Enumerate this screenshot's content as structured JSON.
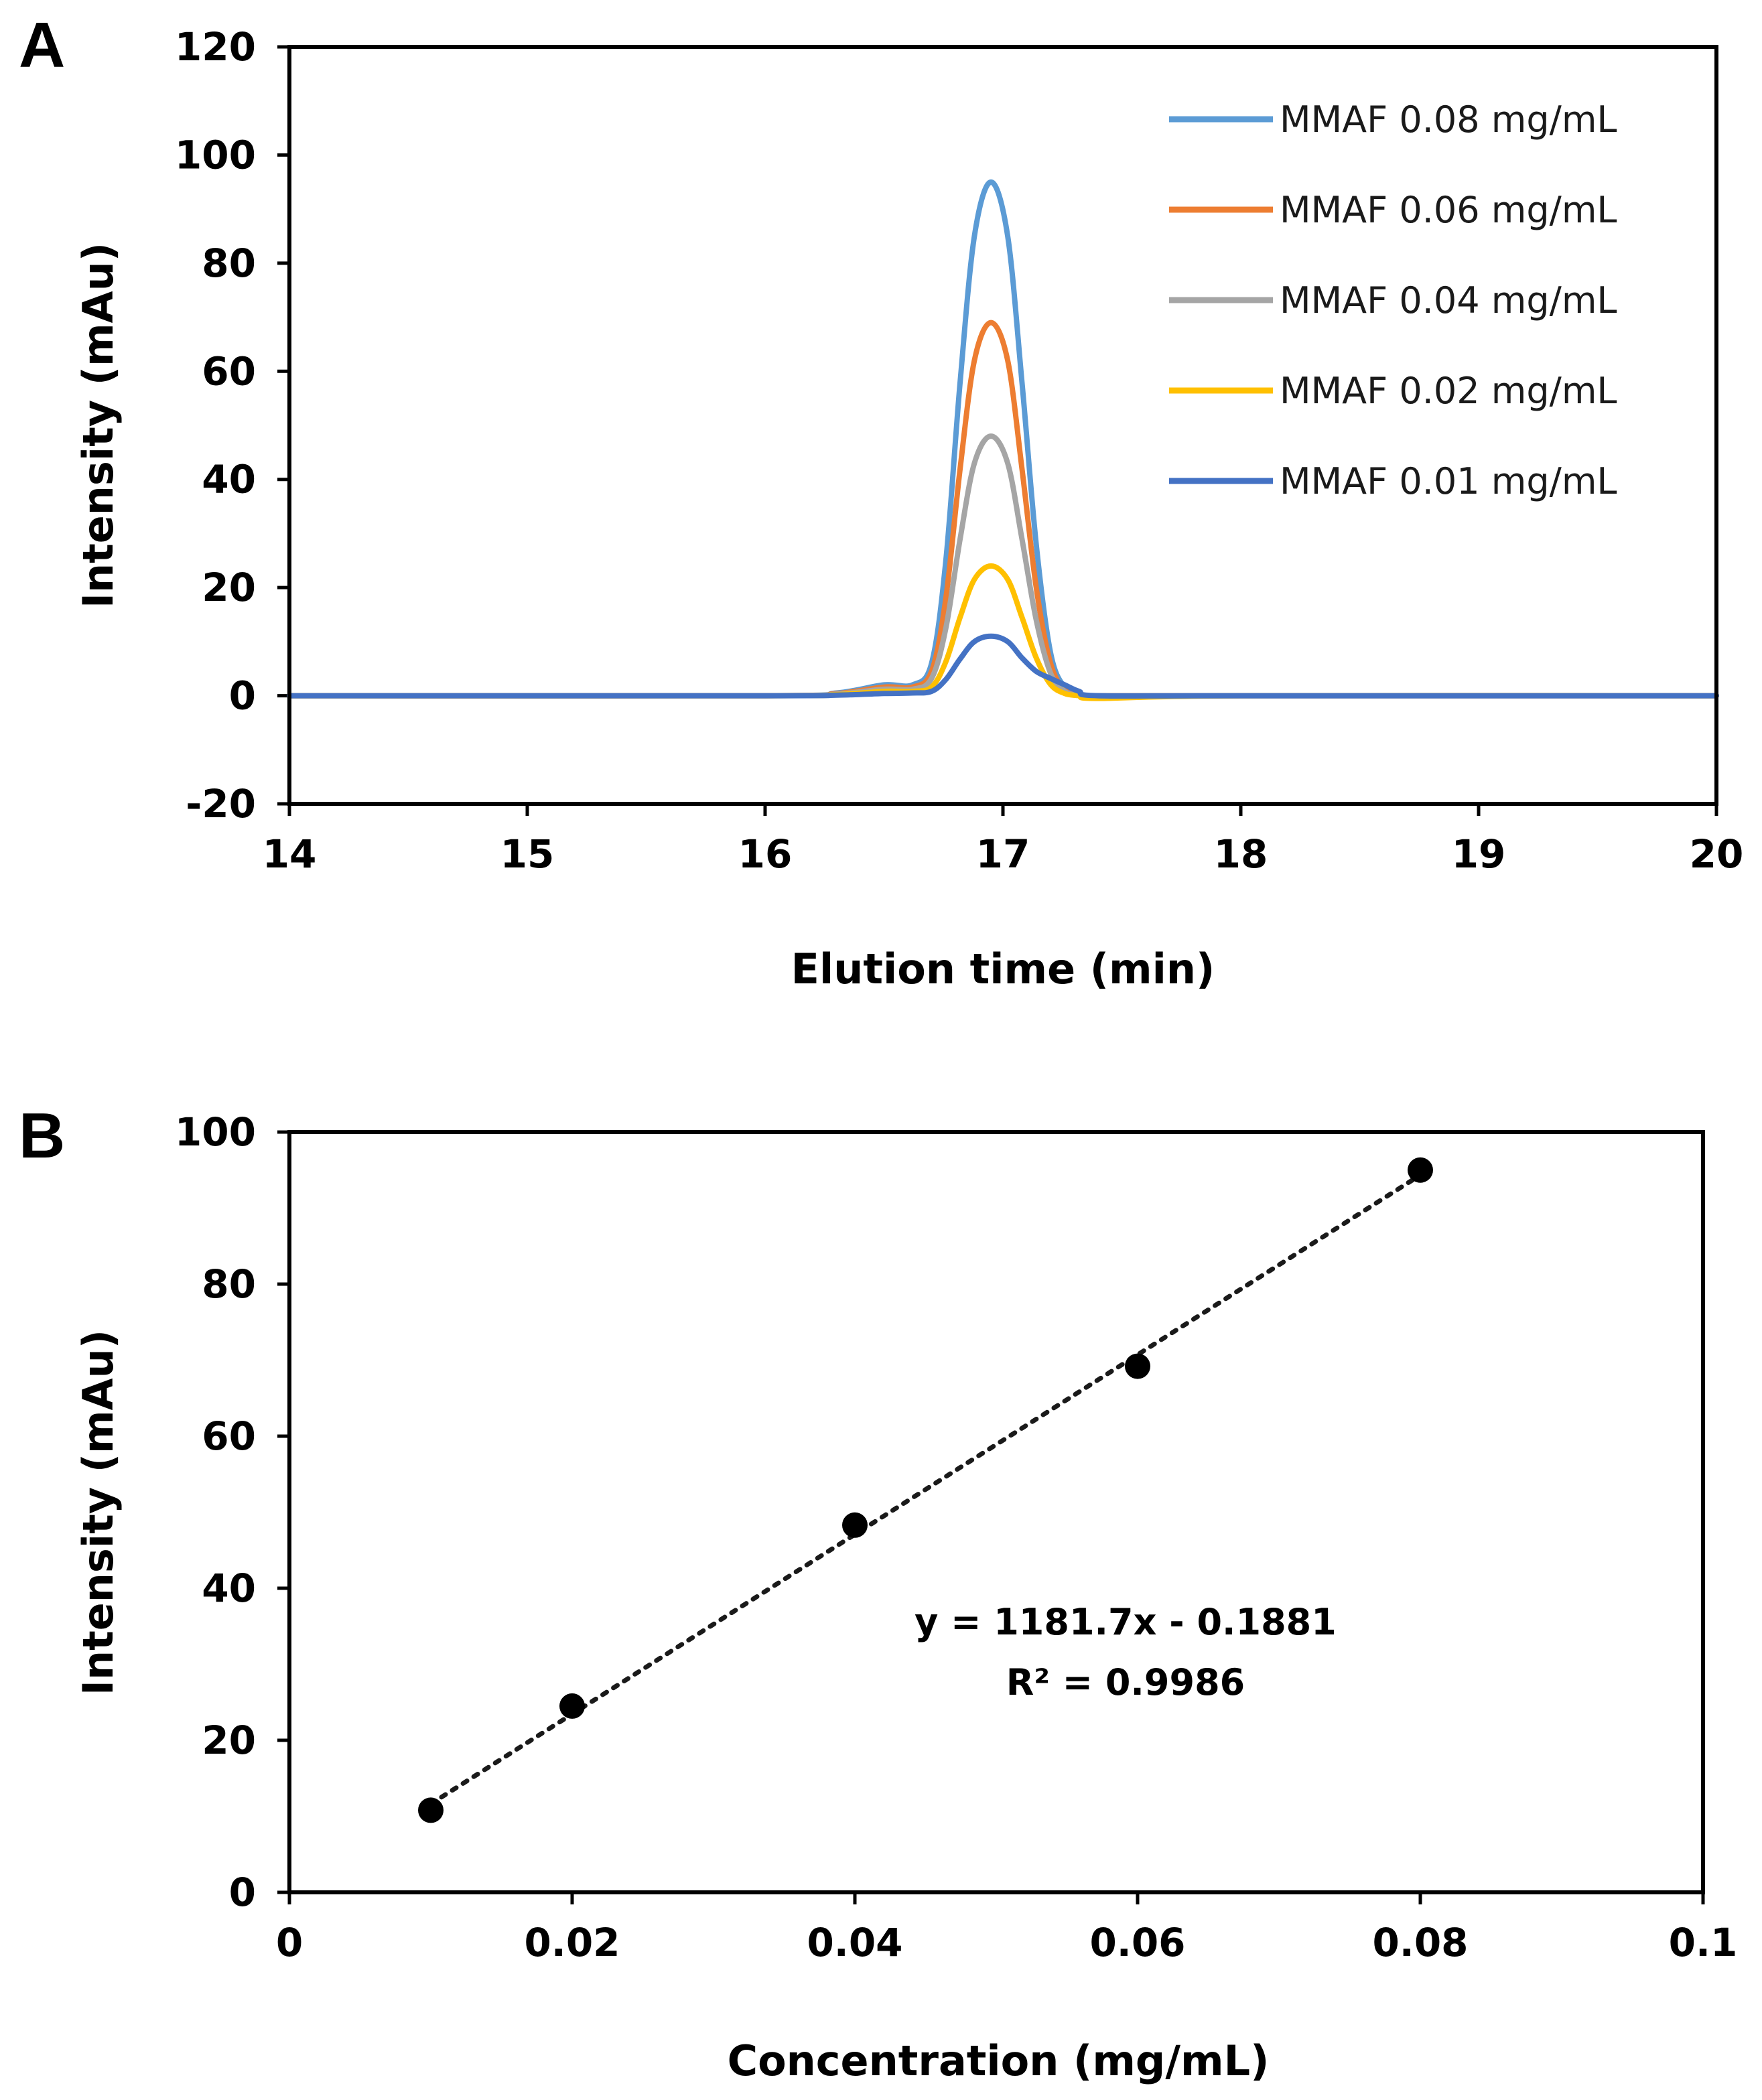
{
  "chart_data": [
    {
      "type": "line",
      "panel_label": "A",
      "title": "",
      "xlabel": "Elution time (min)",
      "ylabel": "Intensity (mAu)",
      "xlim": [
        14,
        20
      ],
      "ylim": [
        -20,
        120
      ],
      "xticks": [
        "14",
        "15",
        "16",
        "17",
        "18",
        "19",
        "20"
      ],
      "yticks": [
        "-20",
        "0",
        "20",
        "40",
        "60",
        "80",
        "100",
        "120"
      ],
      "legend_position": "top-right",
      "grid": false,
      "peak_center": 16.95,
      "series": [
        {
          "name": "MMAF 0.08 mg/mL",
          "color": "#5b9bd5",
          "peak_height": 95,
          "shoulder_height": 2.0,
          "x": [
            14,
            16.0,
            16.3,
            16.5,
            16.62,
            16.7,
            16.76,
            16.82,
            16.88,
            16.95,
            17.02,
            17.08,
            17.14,
            17.2,
            17.26,
            17.32,
            17.4,
            18,
            20
          ],
          "y": [
            0,
            0,
            0.5,
            2.0,
            2.0,
            6,
            25,
            58,
            85,
            95,
            85,
            58,
            28,
            8,
            1.5,
            0.2,
            0,
            0,
            0
          ]
        },
        {
          "name": "MMAF 0.06 mg/mL",
          "color": "#ed7d31",
          "peak_height": 69,
          "shoulder_height": 1.6,
          "x": [
            14,
            16.0,
            16.3,
            16.5,
            16.62,
            16.7,
            16.76,
            16.82,
            16.88,
            16.95,
            17.02,
            17.08,
            17.14,
            17.2,
            17.26,
            17.32,
            17.4,
            18,
            20
          ],
          "y": [
            0,
            0,
            0.4,
            1.6,
            1.6,
            4.5,
            18,
            42,
            62,
            69,
            62,
            42,
            20,
            6,
            1.1,
            0.1,
            0,
            0,
            0
          ]
        },
        {
          "name": "MMAF 0.04 mg/mL",
          "color": "#a5a5a5",
          "peak_height": 48,
          "shoulder_height": 1.2,
          "x": [
            14,
            16.0,
            16.3,
            16.5,
            16.62,
            16.7,
            16.76,
            16.82,
            16.88,
            16.95,
            17.02,
            17.08,
            17.14,
            17.2,
            17.26,
            17.32,
            17.4,
            18,
            20
          ],
          "y": [
            0,
            0,
            0.3,
            1.2,
            1.2,
            3.2,
            12.5,
            29,
            43,
            48,
            43,
            29,
            14,
            4.2,
            0.8,
            0.1,
            0,
            0,
            0
          ]
        },
        {
          "name": "MMAF 0.02 mg/mL",
          "color": "#ffc000",
          "peak_height": 24,
          "shoulder_height": 0.8,
          "x": [
            14,
            16.0,
            16.3,
            16.5,
            16.62,
            16.7,
            16.76,
            16.82,
            16.88,
            16.95,
            17.02,
            17.08,
            17.14,
            17.2,
            17.26,
            17.32,
            17.4,
            18,
            20
          ],
          "y": [
            0,
            0,
            0.2,
            0.8,
            0.8,
            1.6,
            6.3,
            14.5,
            21.5,
            24,
            21.5,
            14.5,
            7,
            2.1,
            0.4,
            0,
            -0.5,
            0,
            0
          ]
        },
        {
          "name": "MMAF 0.01 mg/mL",
          "color": "#4472c4",
          "peak_height": 11,
          "shoulder_height": 0.5,
          "x": [
            14,
            16.0,
            16.3,
            16.5,
            16.62,
            16.7,
            16.76,
            16.82,
            16.88,
            16.95,
            17.02,
            17.08,
            17.14,
            17.2,
            17.26,
            17.32,
            17.4,
            18,
            20
          ],
          "y": [
            0,
            0,
            0.1,
            0.4,
            0.5,
            0.8,
            3.0,
            6.8,
            10,
            11,
            10,
            7.0,
            4.5,
            3.2,
            2.0,
            0.8,
            0,
            0,
            0
          ]
        }
      ]
    },
    {
      "type": "scatter",
      "panel_label": "B",
      "title": "",
      "xlabel": "Concentration (mg/mL)",
      "ylabel": "Intensity (mAu)",
      "xlim": [
        0,
        0.1
      ],
      "ylim": [
        0,
        100
      ],
      "xticks": [
        "0",
        "0.02",
        "0.04",
        "0.06",
        "0.08",
        "0.1"
      ],
      "yticks": [
        "0",
        "20",
        "40",
        "60",
        "80",
        "100"
      ],
      "grid": false,
      "points": {
        "x": [
          0.01,
          0.02,
          0.04,
          0.06,
          0.08
        ],
        "y": [
          10.8,
          24.5,
          48.3,
          69.2,
          95.0
        ]
      },
      "trendline": {
        "slope": 1181.7,
        "intercept": -0.1881,
        "x_range": [
          0.01,
          0.08
        ],
        "style": "dotted"
      },
      "equation_text": "y = 1181.7x - 0.1881",
      "r2_text": "R² = 0.9986"
    }
  ]
}
